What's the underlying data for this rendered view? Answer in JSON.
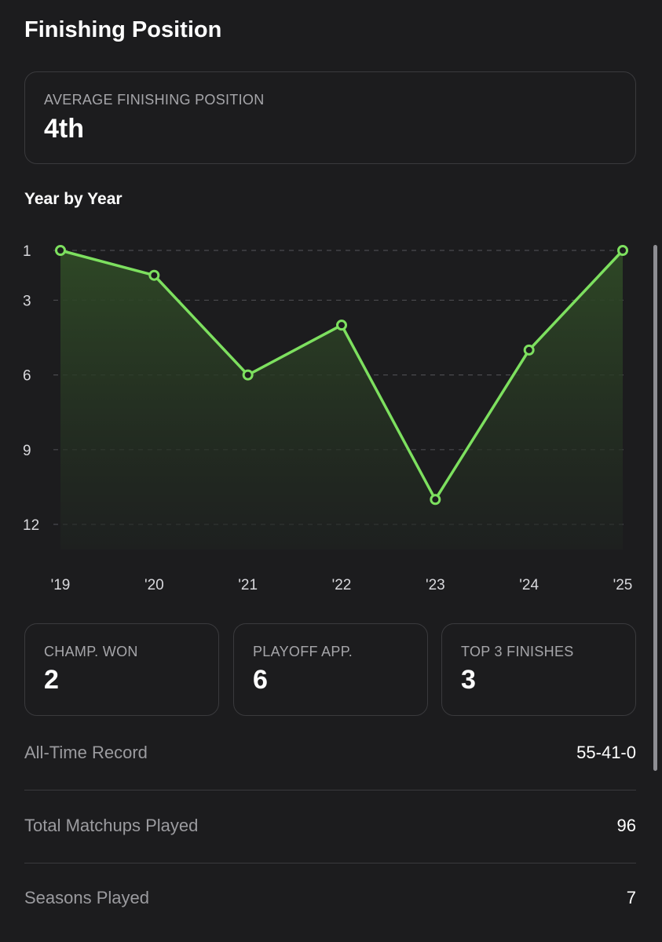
{
  "header": {
    "title": "Finishing Position"
  },
  "average": {
    "label": "AVERAGE FINISHING POSITION",
    "value": "4th"
  },
  "chart_section": {
    "title": "Year by Year"
  },
  "chart_data": {
    "type": "area",
    "title": "",
    "xlabel": "",
    "ylabel": "",
    "categories": [
      "'19",
      "'20",
      "'21",
      "'22",
      "'23",
      "'24",
      "'25"
    ],
    "values": [
      1,
      2,
      6,
      4,
      11,
      5,
      1
    ],
    "yticks": [
      1,
      3,
      6,
      9,
      12
    ],
    "ylim": [
      1,
      12
    ],
    "y_inverted": true,
    "grid": "dashed-horizontal",
    "line_color": "#7de05f",
    "fill_color": "#2f4a26"
  },
  "stats": [
    {
      "label": "CHAMP. WON",
      "value": "2"
    },
    {
      "label": "PLAYOFF APP.",
      "value": "6"
    },
    {
      "label": "TOP 3 FINISHES",
      "value": "3"
    }
  ],
  "rows": [
    {
      "label": "All-Time Record",
      "value": "55-41-0"
    },
    {
      "label": "Total Matchups Played",
      "value": "96"
    },
    {
      "label": "Seasons Played",
      "value": "7"
    }
  ]
}
